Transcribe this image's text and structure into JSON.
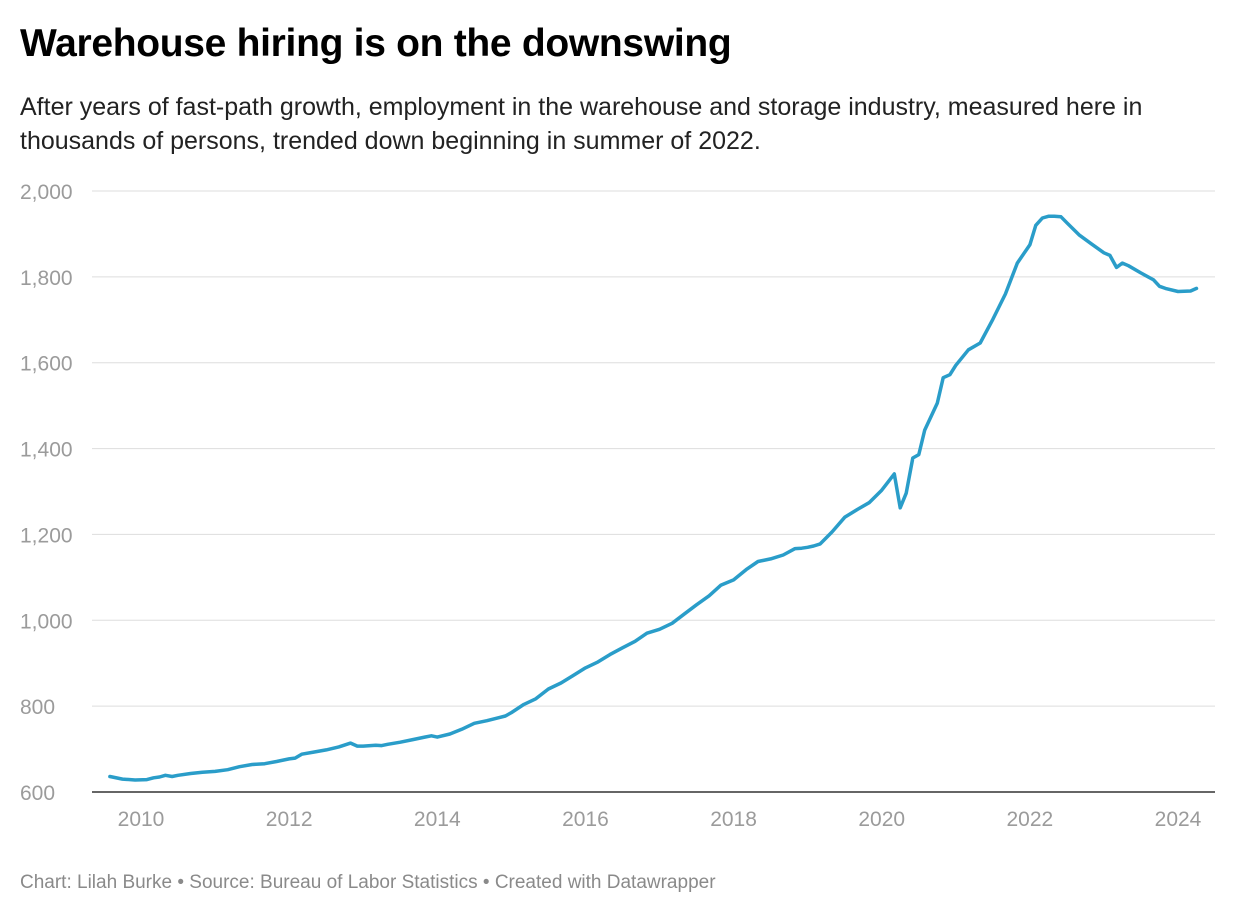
{
  "header": {
    "title": "Warehouse hiring is on the downswing",
    "subtitle": "After years of fast-path growth, employment in the warehouse and storage industry, measured here in thousands of persons, trended down beginning in summer of 2022."
  },
  "footer": {
    "credit": "Chart: Lilah Burke • Source: Bureau of Labor Statistics • Created with Datawrapper"
  },
  "colors": {
    "line": "#2a9dc9",
    "grid": "#dddddd",
    "axis": "#333333",
    "tick_text": "#9b9b9b"
  },
  "chart_data": {
    "type": "line",
    "title": "Warehouse hiring is on the downswing",
    "xlabel": "",
    "ylabel": "",
    "xlim": [
      2009.5,
      2024.3
    ],
    "ylim": [
      600,
      2000
    ],
    "y_ticks": [
      600,
      800,
      1000,
      1200,
      1400,
      1600,
      1800,
      2000
    ],
    "y_tick_labels": [
      "600",
      "800",
      "1,000",
      "1,200",
      "1,400",
      "1,600",
      "1,800",
      "2,000"
    ],
    "x_ticks": [
      2010,
      2012,
      2014,
      2016,
      2018,
      2020,
      2022,
      2024
    ],
    "x_tick_labels": [
      "2010",
      "2012",
      "2014",
      "2016",
      "2018",
      "2020",
      "2022",
      "2024"
    ],
    "grid": true,
    "series": [
      {
        "x": [
          2009.58,
          2009.75,
          2009.92,
          2010.08,
          2010.17,
          2010.25,
          2010.33,
          2010.42,
          2010.5,
          2010.67,
          2010.83,
          2011.0,
          2011.17,
          2011.33,
          2011.5,
          2011.67,
          2011.83,
          2012.0,
          2012.08,
          2012.17,
          2012.33,
          2012.5,
          2012.67,
          2012.83,
          2012.92,
          2013.0,
          2013.17,
          2013.25,
          2013.33,
          2013.5,
          2013.67,
          2013.83,
          2013.92,
          2014.0,
          2014.17,
          2014.33,
          2014.5,
          2014.67,
          2014.83,
          2014.92,
          2015.0,
          2015.17,
          2015.33,
          2015.5,
          2015.67,
          2015.83,
          2016.0,
          2016.17,
          2016.33,
          2016.5,
          2016.67,
          2016.83,
          2017.0,
          2017.17,
          2017.33,
          2017.5,
          2017.67,
          2017.83,
          2018.0,
          2018.17,
          2018.33,
          2018.5,
          2018.67,
          2018.83,
          2018.92,
          2019.0,
          2019.08,
          2019.17,
          2019.33,
          2019.5,
          2019.67,
          2019.83,
          2020.0,
          2020.17,
          2020.25,
          2020.33,
          2020.42,
          2020.5,
          2020.58,
          2020.75,
          2020.83,
          2020.92,
          2021.0,
          2021.17,
          2021.33,
          2021.5,
          2021.67,
          2021.83,
          2022.0,
          2022.08,
          2022.17,
          2022.25,
          2022.33,
          2022.42,
          2022.5,
          2022.67,
          2022.83,
          2023.0,
          2023.08,
          2023.17,
          2023.25,
          2023.33,
          2023.5,
          2023.67,
          2023.75,
          2023.83,
          2024.0,
          2024.17,
          2024.25
        ],
        "values": [
          636,
          630,
          628,
          629,
          633,
          635,
          639,
          636,
          639,
          643,
          646,
          648,
          652,
          659,
          664,
          666,
          671,
          677,
          679,
          688,
          693,
          698,
          705,
          714,
          707,
          707,
          709,
          708,
          711,
          716,
          722,
          728,
          731,
          728,
          735,
          746,
          760,
          766,
          773,
          777,
          785,
          804,
          817,
          840,
          854,
          871,
          889,
          903,
          920,
          936,
          951,
          970,
          979,
          993,
          1014,
          1036,
          1057,
          1082,
          1094,
          1118,
          1137,
          1143,
          1152,
          1167,
          1168,
          1170,
          1173,
          1178,
          1206,
          1240,
          1258,
          1274,
          1303,
          1341,
          1262,
          1296,
          1378,
          1386,
          1443,
          1506,
          1565,
          1572,
          1594,
          1630,
          1646,
          1701,
          1760,
          1832,
          1875,
          1920,
          1937,
          1941,
          1941,
          1940,
          1926,
          1897,
          1877,
          1856,
          1850,
          1822,
          1832,
          1826,
          1809,
          1793,
          1778,
          1773,
          1766,
          1767,
          1773
        ]
      }
    ]
  }
}
